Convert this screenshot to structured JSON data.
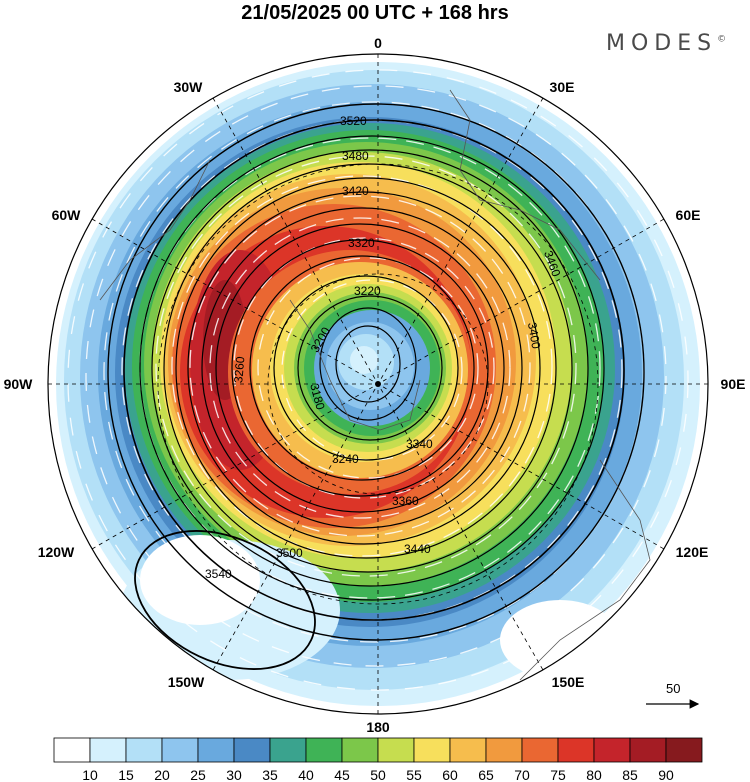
{
  "title": "21/05/2025  00 UTC  + 168 hrs",
  "brand": {
    "name": "MODES",
    "mark": "©"
  },
  "longitude_labels": [
    {
      "key": "0",
      "text": "0"
    },
    {
      "key": "30E",
      "text": "30E"
    },
    {
      "key": "60E",
      "text": "60E"
    },
    {
      "key": "90E",
      "text": "90E"
    },
    {
      "key": "120E",
      "text": "120E"
    },
    {
      "key": "150E",
      "text": "150E"
    },
    {
      "key": "180",
      "text": "180"
    },
    {
      "key": "150W",
      "text": "150W"
    },
    {
      "key": "120W",
      "text": "120W"
    },
    {
      "key": "90W",
      "text": "90W"
    },
    {
      "key": "60W",
      "text": "60W"
    },
    {
      "key": "30W",
      "text": "30W"
    }
  ],
  "contour_labels": [
    "3520",
    "3480",
    "3420",
    "3320",
    "3220",
    "3200",
    "3180",
    "3240",
    "3360",
    "3440",
    "3500",
    "3540",
    "3460",
    "3400",
    "3340",
    "3260"
  ],
  "wind_speed_colorbar": {
    "ticks": [
      "10",
      "15",
      "20",
      "25",
      "30",
      "35",
      "40",
      "45",
      "50",
      "55",
      "60",
      "65",
      "70",
      "75",
      "80",
      "85",
      "90"
    ],
    "colors": [
      "#ffffff",
      "#d5f1fd",
      "#b3e0f7",
      "#8ec5ee",
      "#69a9de",
      "#4a89c5",
      "#3aa38e",
      "#3fb356",
      "#7cc74a",
      "#c6dd4f",
      "#f7df5c",
      "#f6bd4d",
      "#f19a3e",
      "#ea6732",
      "#dc3528",
      "#c4242b",
      "#a41c24",
      "#861a1e"
    ]
  },
  "vector_reference": {
    "value": "50"
  }
}
